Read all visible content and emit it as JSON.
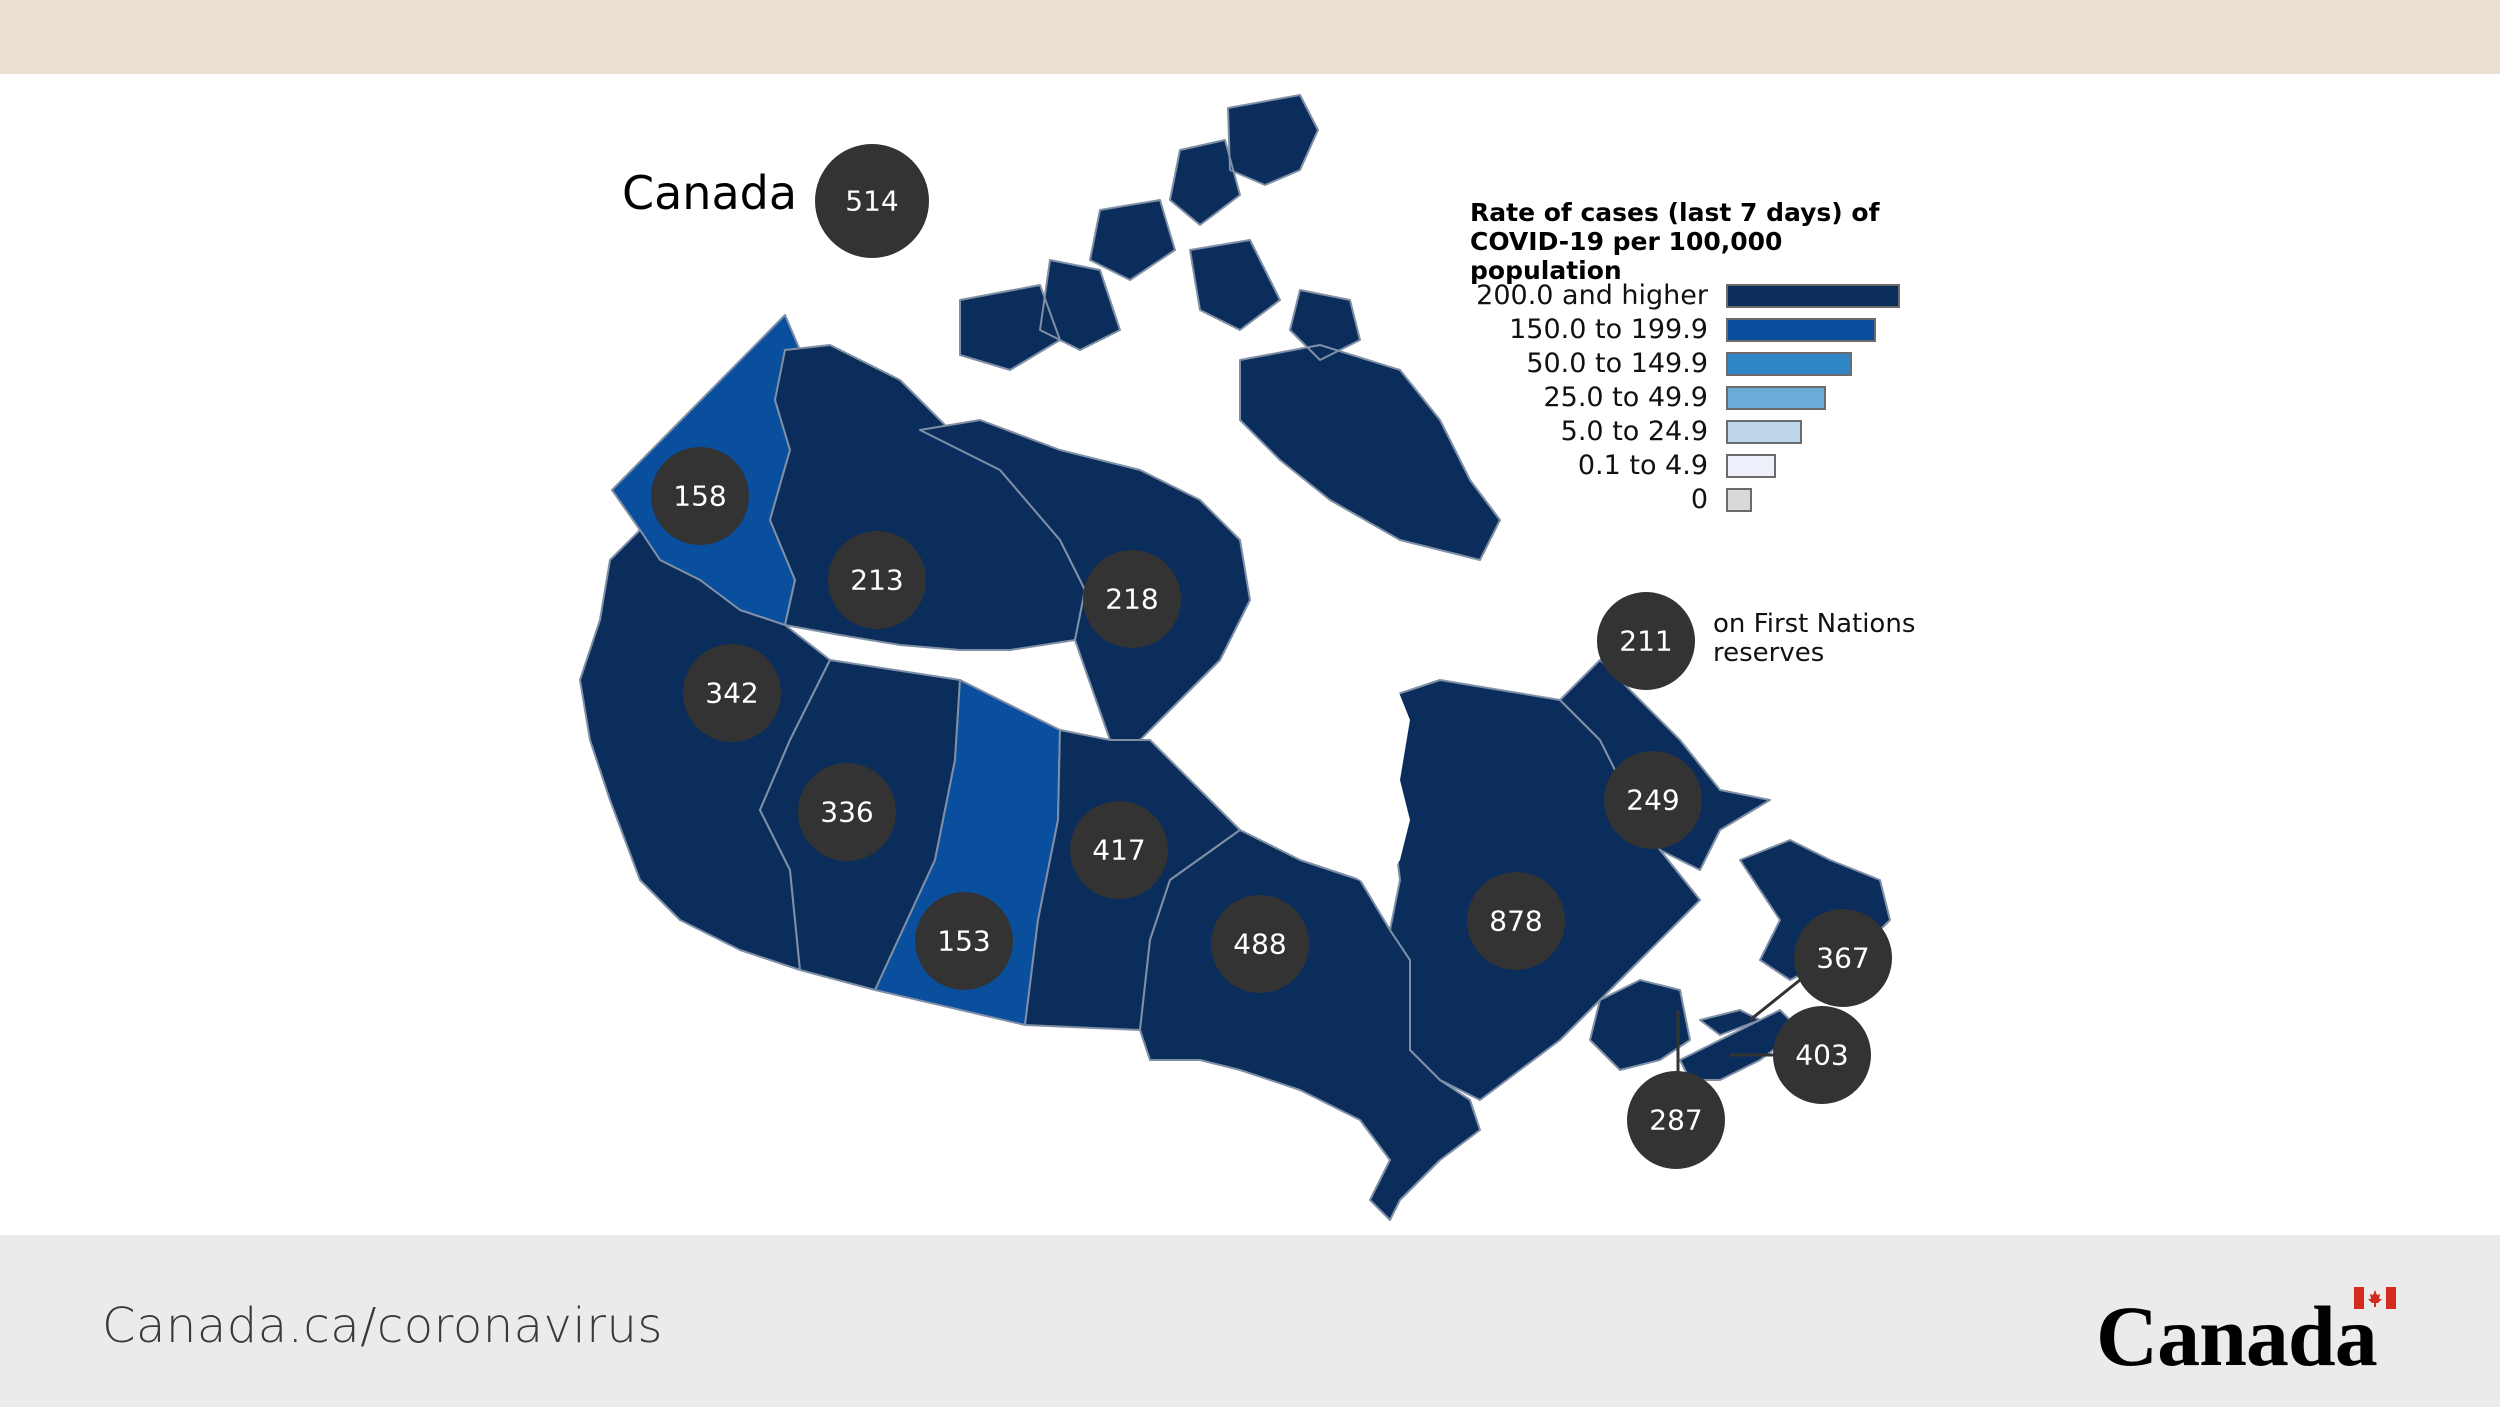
{
  "title": "Canada",
  "national_rate": "514",
  "legend": {
    "title_line1": "Rate of cases (last 7 days) of",
    "title_line2": "COVID-19 per 100,000 population",
    "items": [
      {
        "label": "200.0 and higher",
        "color": "#0b2d5b"
      },
      {
        "label": "150.0 to 199.9",
        "color": "#0a4f9e"
      },
      {
        "label": "50.0 to 149.9",
        "color": "#2f86c8"
      },
      {
        "label": "25.0 to 49.9",
        "color": "#6aabd8"
      },
      {
        "label": "5.0 to 24.9",
        "color": "#bcd5e8"
      },
      {
        "label": "0.1 to 4.9",
        "color": "#eef0fb"
      },
      {
        "label": "0",
        "color": "#d9d9d9"
      }
    ]
  },
  "first_nations": {
    "rate": "211",
    "label_line1": "on First Nations",
    "label_line2": "reserves"
  },
  "regions": [
    {
      "name": "Yukon",
      "rate": "158",
      "color": "#0a4f9e"
    },
    {
      "name": "Northwest Territories",
      "rate": "213",
      "color": "#0b2d5b"
    },
    {
      "name": "Nunavut",
      "rate": "218",
      "color": "#0b2d5b"
    },
    {
      "name": "British Columbia",
      "rate": "342",
      "color": "#0b2d5b"
    },
    {
      "name": "Alberta",
      "rate": "336",
      "color": "#0b2d5b"
    },
    {
      "name": "Saskatchewan",
      "rate": "153",
      "color": "#0a4f9e"
    },
    {
      "name": "Manitoba",
      "rate": "417",
      "color": "#0b2d5b"
    },
    {
      "name": "Ontario",
      "rate": "488",
      "color": "#0b2d5b"
    },
    {
      "name": "Quebec",
      "rate": "878",
      "color": "#0b2d5b"
    },
    {
      "name": "Newfoundland and Labrador",
      "rate": "249",
      "color": "#0b2d5b"
    },
    {
      "name": "Prince Edward Island",
      "rate": "367",
      "color": "#0b2d5b"
    },
    {
      "name": "Nova Scotia",
      "rate": "403",
      "color": "#0b2d5b"
    },
    {
      "name": "New Brunswick",
      "rate": "287",
      "color": "#0b2d5b"
    }
  ],
  "footer": {
    "url": "Canada.ca/coronavirus",
    "wordmark": "Canada"
  }
}
